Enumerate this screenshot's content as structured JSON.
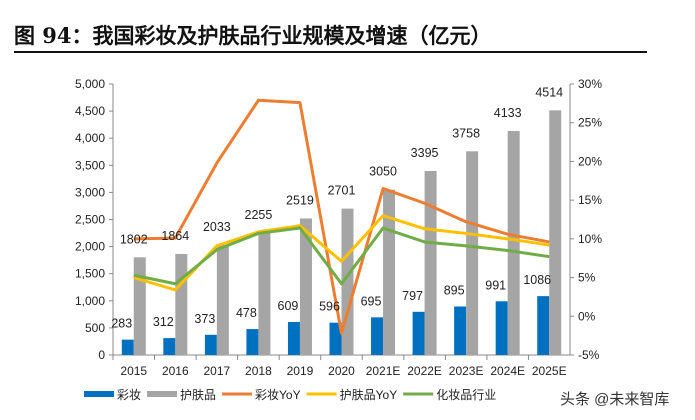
{
  "title": "图 94：我国彩妆及护肤品行业规模及增速（亿元）",
  "watermark": "头条 @未来智库",
  "chart_data": {
    "type": "bar+line",
    "categories": [
      "2015",
      "2016",
      "2017",
      "2018",
      "2019",
      "2020",
      "2021E",
      "2022E",
      "2023E",
      "2024E",
      "2025E"
    ],
    "left_axis": {
      "ylim": [
        0,
        5000
      ],
      "ticks": [
        "0",
        "500",
        "1,000",
        "1,500",
        "2,000",
        "2,500",
        "3,000",
        "3,500",
        "4,000",
        "4,500",
        "5,000"
      ]
    },
    "right_axis": {
      "ylim": [
        -5,
        30
      ],
      "ticks": [
        "-5%",
        "0%",
        "5%",
        "10%",
        "15%",
        "20%",
        "25%",
        "30%"
      ]
    },
    "grid": false,
    "legend_position": "bottom",
    "bar_series": [
      {
        "name": "彩妆",
        "color": "#0070C0",
        "values": [
          283,
          312,
          373,
          478,
          609,
          596,
          695,
          797,
          895,
          991,
          1086
        ]
      },
      {
        "name": "护肤品",
        "color": "#A5A5A5",
        "values": [
          1802,
          1864,
          2033,
          2255,
          2519,
          2701,
          3050,
          3395,
          3758,
          4133,
          4514
        ]
      }
    ],
    "line_series": [
      {
        "name": "彩妆YoY",
        "color": "#ED7D31",
        "values": [
          10.0,
          10.1,
          19.8,
          27.9,
          27.6,
          -2.2,
          16.5,
          14.6,
          12.2,
          10.6,
          9.6
        ]
      },
      {
        "name": "护肤品YoY",
        "color": "#FFC000",
        "values": [
          5.0,
          3.4,
          9.1,
          10.9,
          11.7,
          7.1,
          13.0,
          11.3,
          10.7,
          10.0,
          9.2
        ]
      },
      {
        "name": "化妆品行业",
        "color": "#70AD47",
        "values": [
          5.3,
          4.2,
          8.6,
          10.7,
          11.4,
          4.2,
          11.4,
          9.6,
          9.1,
          8.5,
          7.7
        ]
      }
    ]
  }
}
